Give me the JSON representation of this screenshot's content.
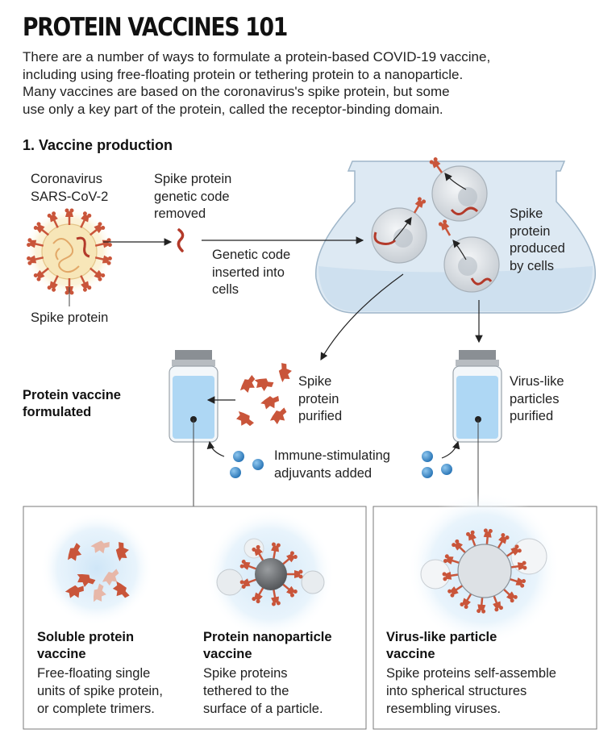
{
  "header": {
    "title": "PROTEIN VACCINES 101",
    "intro_lines": [
      "There are a number of ways to formulate a protein-based COVID-19 vaccine,",
      "including using free-floating protein or tethering protein to a nanoparticle.",
      "Many vaccines are based on the coronavirus's spike protein, but some",
      "use only a key part of the protein, called the receptor-binding domain."
    ]
  },
  "section": {
    "title": "1.  Vaccine production"
  },
  "labels": {
    "virus": [
      "Coronavirus",
      "SARS-CoV-2"
    ],
    "spike_protein": "Spike protein",
    "genetic_code_removed": [
      "Spike protein",
      "genetic code",
      "removed"
    ],
    "genetic_code_inserted": [
      "Genetic code",
      "inserted into",
      "cells"
    ],
    "spike_produced": [
      "Spike",
      "protein",
      "produced",
      "by cells"
    ],
    "protein_vaccine_formulated": [
      "Protein vaccine",
      "formulated"
    ],
    "spike_purified": [
      "Spike",
      "protein",
      "purified"
    ],
    "vlp_purified": [
      "Virus-like",
      "particles",
      "purified"
    ],
    "adjuvants": [
      "Immune-stimulating",
      "adjuvants added"
    ]
  },
  "panels": [
    {
      "title": [
        "Soluble protein",
        "vaccine"
      ],
      "description": [
        "Free-floating single",
        "units of spike protein,",
        "or complete trimers."
      ]
    },
    {
      "title": [
        "Protein nanoparticle",
        "vaccine"
      ],
      "description": [
        "Spike proteins",
        "tethered to the",
        "surface of a particle."
      ]
    },
    {
      "title": [
        "Virus-like particle",
        "vaccine"
      ],
      "description": [
        "Spike proteins self-assemble",
        "into spherical structures",
        "resembling viruses."
      ]
    }
  ],
  "colors": {
    "spike": "#c9553a",
    "rna": "#b33a2a",
    "virus_core": "#f7e6b8",
    "flask_fill": "#dde9f3",
    "vial_liquid": "#aed7f4",
    "adjuvant": "#3f8fd0",
    "cell": "#d5d9dd",
    "nanoparticle": "#6e7174"
  }
}
